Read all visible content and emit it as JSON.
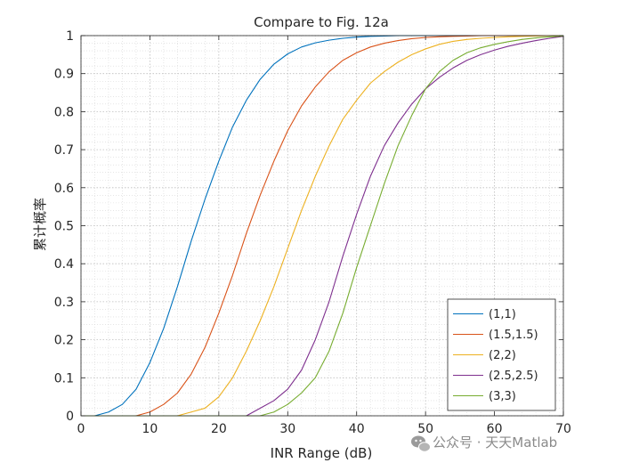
{
  "chart_data": {
    "type": "line",
    "title": "Compare to Fig. 12a",
    "xlabel": "INR Range (dB)",
    "ylabel": "累计概率",
    "xlim": [
      0,
      70
    ],
    "ylim": [
      0,
      1
    ],
    "xticks": [
      0,
      10,
      20,
      30,
      40,
      50,
      60,
      70
    ],
    "yticks": [
      0,
      0.1,
      0.2,
      0.3,
      0.4,
      0.5,
      0.6,
      0.7,
      0.8,
      0.9,
      1
    ],
    "xtick_labels": [
      "0",
      "10",
      "20",
      "30",
      "40",
      "50",
      "60",
      "70"
    ],
    "ytick_labels": [
      "0",
      "0.1",
      "0.2",
      "0.3",
      "0.4",
      "0.5",
      "0.6",
      "0.7",
      "0.8",
      "0.9",
      "1"
    ],
    "grid": true,
    "minor_grid": true,
    "legend_position": "bottom-right",
    "x": [
      0,
      2,
      4,
      6,
      8,
      10,
      12,
      14,
      16,
      18,
      20,
      22,
      24,
      26,
      28,
      30,
      32,
      34,
      36,
      38,
      40,
      42,
      44,
      46,
      48,
      50,
      52,
      54,
      56,
      58,
      60,
      62,
      64,
      66,
      68,
      70
    ],
    "series": [
      {
        "name": "(1,1)",
        "color": "#0072BD",
        "values": [
          0,
          0,
          0.01,
          0.03,
          0.07,
          0.14,
          0.23,
          0.34,
          0.46,
          0.57,
          0.67,
          0.76,
          0.83,
          0.885,
          0.925,
          0.952,
          0.97,
          0.981,
          0.988,
          0.993,
          0.996,
          0.998,
          0.999,
          1,
          1,
          1,
          1,
          1,
          1,
          1,
          1,
          1,
          1,
          1,
          1,
          1
        ]
      },
      {
        "name": "(1.5,1.5)",
        "color": "#D95319",
        "values": [
          0,
          0,
          0,
          0,
          0,
          0.01,
          0.03,
          0.06,
          0.11,
          0.18,
          0.27,
          0.37,
          0.48,
          0.58,
          0.67,
          0.75,
          0.815,
          0.865,
          0.905,
          0.935,
          0.955,
          0.97,
          0.98,
          0.987,
          0.992,
          0.995,
          0.997,
          0.998,
          0.999,
          1,
          1,
          1,
          1,
          1,
          1,
          1
        ]
      },
      {
        "name": "(2,2)",
        "color": "#EDB120",
        "values": [
          0,
          0,
          0,
          0,
          0,
          0,
          0,
          0,
          0.01,
          0.02,
          0.05,
          0.1,
          0.17,
          0.25,
          0.34,
          0.44,
          0.54,
          0.63,
          0.71,
          0.78,
          0.83,
          0.875,
          0.905,
          0.93,
          0.95,
          0.965,
          0.977,
          0.985,
          0.99,
          0.993,
          0.995,
          0.997,
          0.998,
          0.999,
          1,
          1
        ]
      },
      {
        "name": "(2.5,2.5)",
        "color": "#7E2F8E",
        "values": [
          0,
          0,
          0,
          0,
          0,
          0,
          0,
          0,
          0,
          0,
          0,
          0,
          0,
          0.02,
          0.04,
          0.07,
          0.12,
          0.2,
          0.3,
          0.42,
          0.53,
          0.63,
          0.71,
          0.77,
          0.82,
          0.86,
          0.89,
          0.915,
          0.935,
          0.95,
          0.962,
          0.972,
          0.98,
          0.987,
          0.993,
          0.998
        ]
      },
      {
        "name": "(3,3)",
        "color": "#77AC30",
        "values": [
          0,
          0,
          0,
          0,
          0,
          0,
          0,
          0,
          0,
          0,
          0,
          0,
          0,
          0,
          0.01,
          0.03,
          0.06,
          0.1,
          0.17,
          0.27,
          0.39,
          0.5,
          0.61,
          0.71,
          0.79,
          0.86,
          0.905,
          0.935,
          0.955,
          0.968,
          0.977,
          0.984,
          0.99,
          0.994,
          0.997,
          0.999
        ]
      }
    ]
  },
  "watermark": {
    "text": "公众号 · 天天Matlab",
    "icon": "wechat-icon"
  }
}
